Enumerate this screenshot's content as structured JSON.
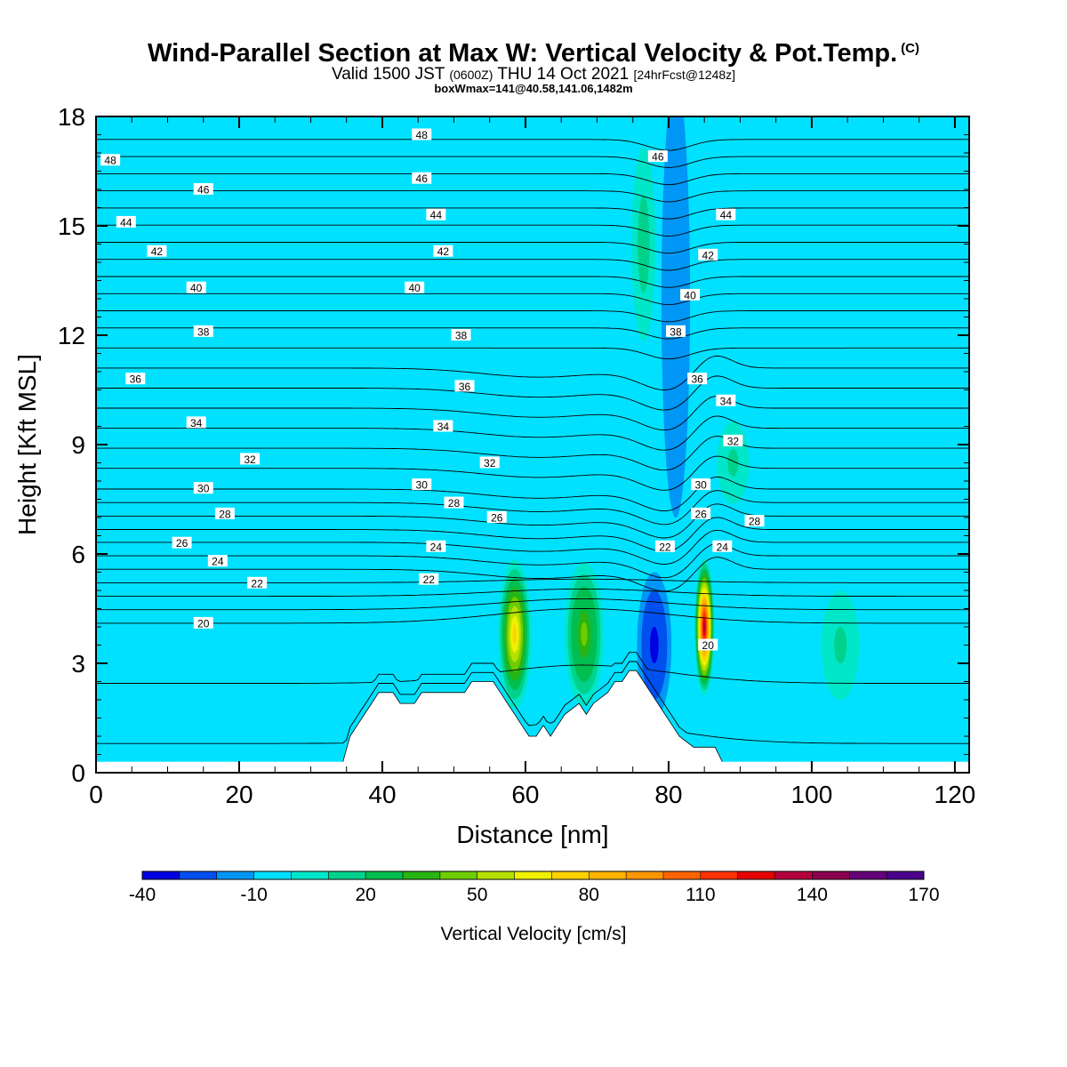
{
  "header": {
    "title": "Wind-Parallel Section at Max W: Vertical Velocity & Pot.Temp.",
    "copyright_mark": "(C)",
    "valid_prefix": "Valid 1500 JST",
    "valid_utc": "(0600Z)",
    "valid_date": "THU 14 Oct 2021",
    "forecast": "[24hrFcst@1248z]",
    "box_info": "boxWmax=141@40.58,141.06,1482m"
  },
  "chart_data": {
    "type": "heatmap",
    "xlabel": "Distance [nm]",
    "ylabel": "Height [Kft MSL]",
    "xlim": [
      0,
      122
    ],
    "ylim": [
      0,
      18
    ],
    "x_ticks": [
      0,
      20,
      40,
      60,
      80,
      100,
      120
    ],
    "y_ticks": [
      0,
      3,
      6,
      9,
      12,
      15,
      18
    ],
    "background_w": -10,
    "colorbar": {
      "label": "Vertical Velocity [cm/s]",
      "tick_labels": [
        "-40",
        "-10",
        "20",
        "50",
        "80",
        "110",
        "140",
        "170"
      ],
      "bounds": [
        -40,
        170
      ],
      "step": 10,
      "colors": [
        "#0000e0",
        "#0050f0",
        "#0096f5",
        "#00e1ff",
        "#00e6c8",
        "#00d28c",
        "#00be50",
        "#28b414",
        "#6ecd00",
        "#b4e100",
        "#f0f000",
        "#ffd200",
        "#ffb400",
        "#ff9600",
        "#ff6400",
        "#ff3200",
        "#e60000",
        "#b4003c",
        "#8c0050",
        "#640078",
        "#4b008c"
      ]
    },
    "w_features": [
      {
        "x": 58.5,
        "y": 3.8,
        "rx": 2.6,
        "ry": 2.3,
        "w": 70
      },
      {
        "x": 68.2,
        "y": 3.8,
        "rx": 3.2,
        "ry": 2.3,
        "w": 45
      },
      {
        "x": 85.0,
        "y": 4.0,
        "rx": 1.5,
        "ry": 2.0,
        "w": 130
      },
      {
        "x": 78.0,
        "y": 3.5,
        "rx": 2.4,
        "ry": 2.0,
        "w": -35
      },
      {
        "x": 104.0,
        "y": 3.5,
        "rx": 3.5,
        "ry": 2.0,
        "w": 15
      },
      {
        "x": 81.0,
        "y": 13.0,
        "rx": 2.0,
        "ry": 6.0,
        "w": -20
      },
      {
        "x": 76.5,
        "y": 14.5,
        "rx": 2.5,
        "ry": 4.0,
        "w": 10
      },
      {
        "x": 89.0,
        "y": 8.5,
        "rx": 3.0,
        "ry": 1.5,
        "w": 15
      }
    ],
    "terrain": [
      [
        34.5,
        0.3
      ],
      [
        35.5,
        1.0
      ],
      [
        36.5,
        1.3
      ],
      [
        37.5,
        1.6
      ],
      [
        38.5,
        1.9
      ],
      [
        39.5,
        2.2
      ],
      [
        41.5,
        2.2
      ],
      [
        42.5,
        1.9
      ],
      [
        44.5,
        1.9
      ],
      [
        45.5,
        2.2
      ],
      [
        51.5,
        2.2
      ],
      [
        52.5,
        2.5
      ],
      [
        55.5,
        2.5
      ],
      [
        56.5,
        2.2
      ],
      [
        57.5,
        1.9
      ],
      [
        58.5,
        1.6
      ],
      [
        59.5,
        1.3
      ],
      [
        60.5,
        1.0
      ],
      [
        61.5,
        1.0
      ],
      [
        62.5,
        1.3
      ],
      [
        63.5,
        1.0
      ],
      [
        64.5,
        1.3
      ],
      [
        65.5,
        1.6
      ],
      [
        67.5,
        1.9
      ],
      [
        68.5,
        1.6
      ],
      [
        69.5,
        1.9
      ],
      [
        71.5,
        2.2
      ],
      [
        72.5,
        2.5
      ],
      [
        73.5,
        2.5
      ],
      [
        74.5,
        2.8
      ],
      [
        75.5,
        2.8
      ],
      [
        76.5,
        2.5
      ],
      [
        77.5,
        2.2
      ],
      [
        78.5,
        1.9
      ],
      [
        79.5,
        1.6
      ],
      [
        80.5,
        1.3
      ],
      [
        81.5,
        1.0
      ],
      [
        83.5,
        0.7
      ],
      [
        86.5,
        0.7
      ],
      [
        87.5,
        0.3
      ]
    ],
    "theta_contours": {
      "min_value": 18,
      "max_value": 49,
      "labels": [
        {
          "v": 48,
          "x": 2.0,
          "y": 16.8
        },
        {
          "v": 48,
          "x": 45.5,
          "y": 17.5
        },
        {
          "v": 46,
          "x": 15.0,
          "y": 16.0
        },
        {
          "v": 46,
          "x": 45.5,
          "y": 16.3
        },
        {
          "v": 46,
          "x": 78.5,
          "y": 16.9
        },
        {
          "v": 44,
          "x": 4.2,
          "y": 15.1
        },
        {
          "v": 44,
          "x": 47.5,
          "y": 15.3
        },
        {
          "v": 44,
          "x": 88.0,
          "y": 15.3
        },
        {
          "v": 42,
          "x": 8.5,
          "y": 14.3
        },
        {
          "v": 42,
          "x": 48.5,
          "y": 14.3
        },
        {
          "v": 42,
          "x": 85.5,
          "y": 14.2
        },
        {
          "v": 40,
          "x": 14.0,
          "y": 13.3
        },
        {
          "v": 40,
          "x": 44.5,
          "y": 13.3
        },
        {
          "v": 40,
          "x": 83.0,
          "y": 13.1
        },
        {
          "v": 38,
          "x": 15.0,
          "y": 12.1
        },
        {
          "v": 38,
          "x": 51.0,
          "y": 12.0
        },
        {
          "v": 38,
          "x": 81.0,
          "y": 12.1
        },
        {
          "v": 36,
          "x": 5.5,
          "y": 10.8
        },
        {
          "v": 36,
          "x": 51.5,
          "y": 10.6
        },
        {
          "v": 36,
          "x": 84.0,
          "y": 10.8
        },
        {
          "v": 34,
          "x": 14.0,
          "y": 9.6
        },
        {
          "v": 34,
          "x": 48.5,
          "y": 9.5
        },
        {
          "v": 34,
          "x": 88.0,
          "y": 10.2
        },
        {
          "v": 32,
          "x": 21.5,
          "y": 8.6
        },
        {
          "v": 32,
          "x": 55.0,
          "y": 8.5
        },
        {
          "v": 32,
          "x": 89.0,
          "y": 9.1
        },
        {
          "v": 30,
          "x": 15.0,
          "y": 7.8
        },
        {
          "v": 30,
          "x": 45.5,
          "y": 7.9
        },
        {
          "v": 30,
          "x": 84.5,
          "y": 7.9
        },
        {
          "v": 28,
          "x": 18.0,
          "y": 7.1
        },
        {
          "v": 28,
          "x": 50.0,
          "y": 7.4
        },
        {
          "v": 28,
          "x": 92.0,
          "y": 6.9
        },
        {
          "v": 26,
          "x": 12.0,
          "y": 6.3
        },
        {
          "v": 26,
          "x": 56.0,
          "y": 7.0
        },
        {
          "v": 26,
          "x": 84.5,
          "y": 7.1
        },
        {
          "v": 24,
          "x": 17.0,
          "y": 5.8
        },
        {
          "v": 24,
          "x": 47.5,
          "y": 6.2
        },
        {
          "v": 24,
          "x": 87.5,
          "y": 6.2
        },
        {
          "v": 22,
          "x": 22.5,
          "y": 5.2
        },
        {
          "v": 22,
          "x": 46.5,
          "y": 5.3
        },
        {
          "v": 22,
          "x": 79.5,
          "y": 6.2
        },
        {
          "v": 20,
          "x": 15.0,
          "y": 4.1
        },
        {
          "v": 20,
          "x": 85.5,
          "y": 3.5
        }
      ]
    }
  }
}
